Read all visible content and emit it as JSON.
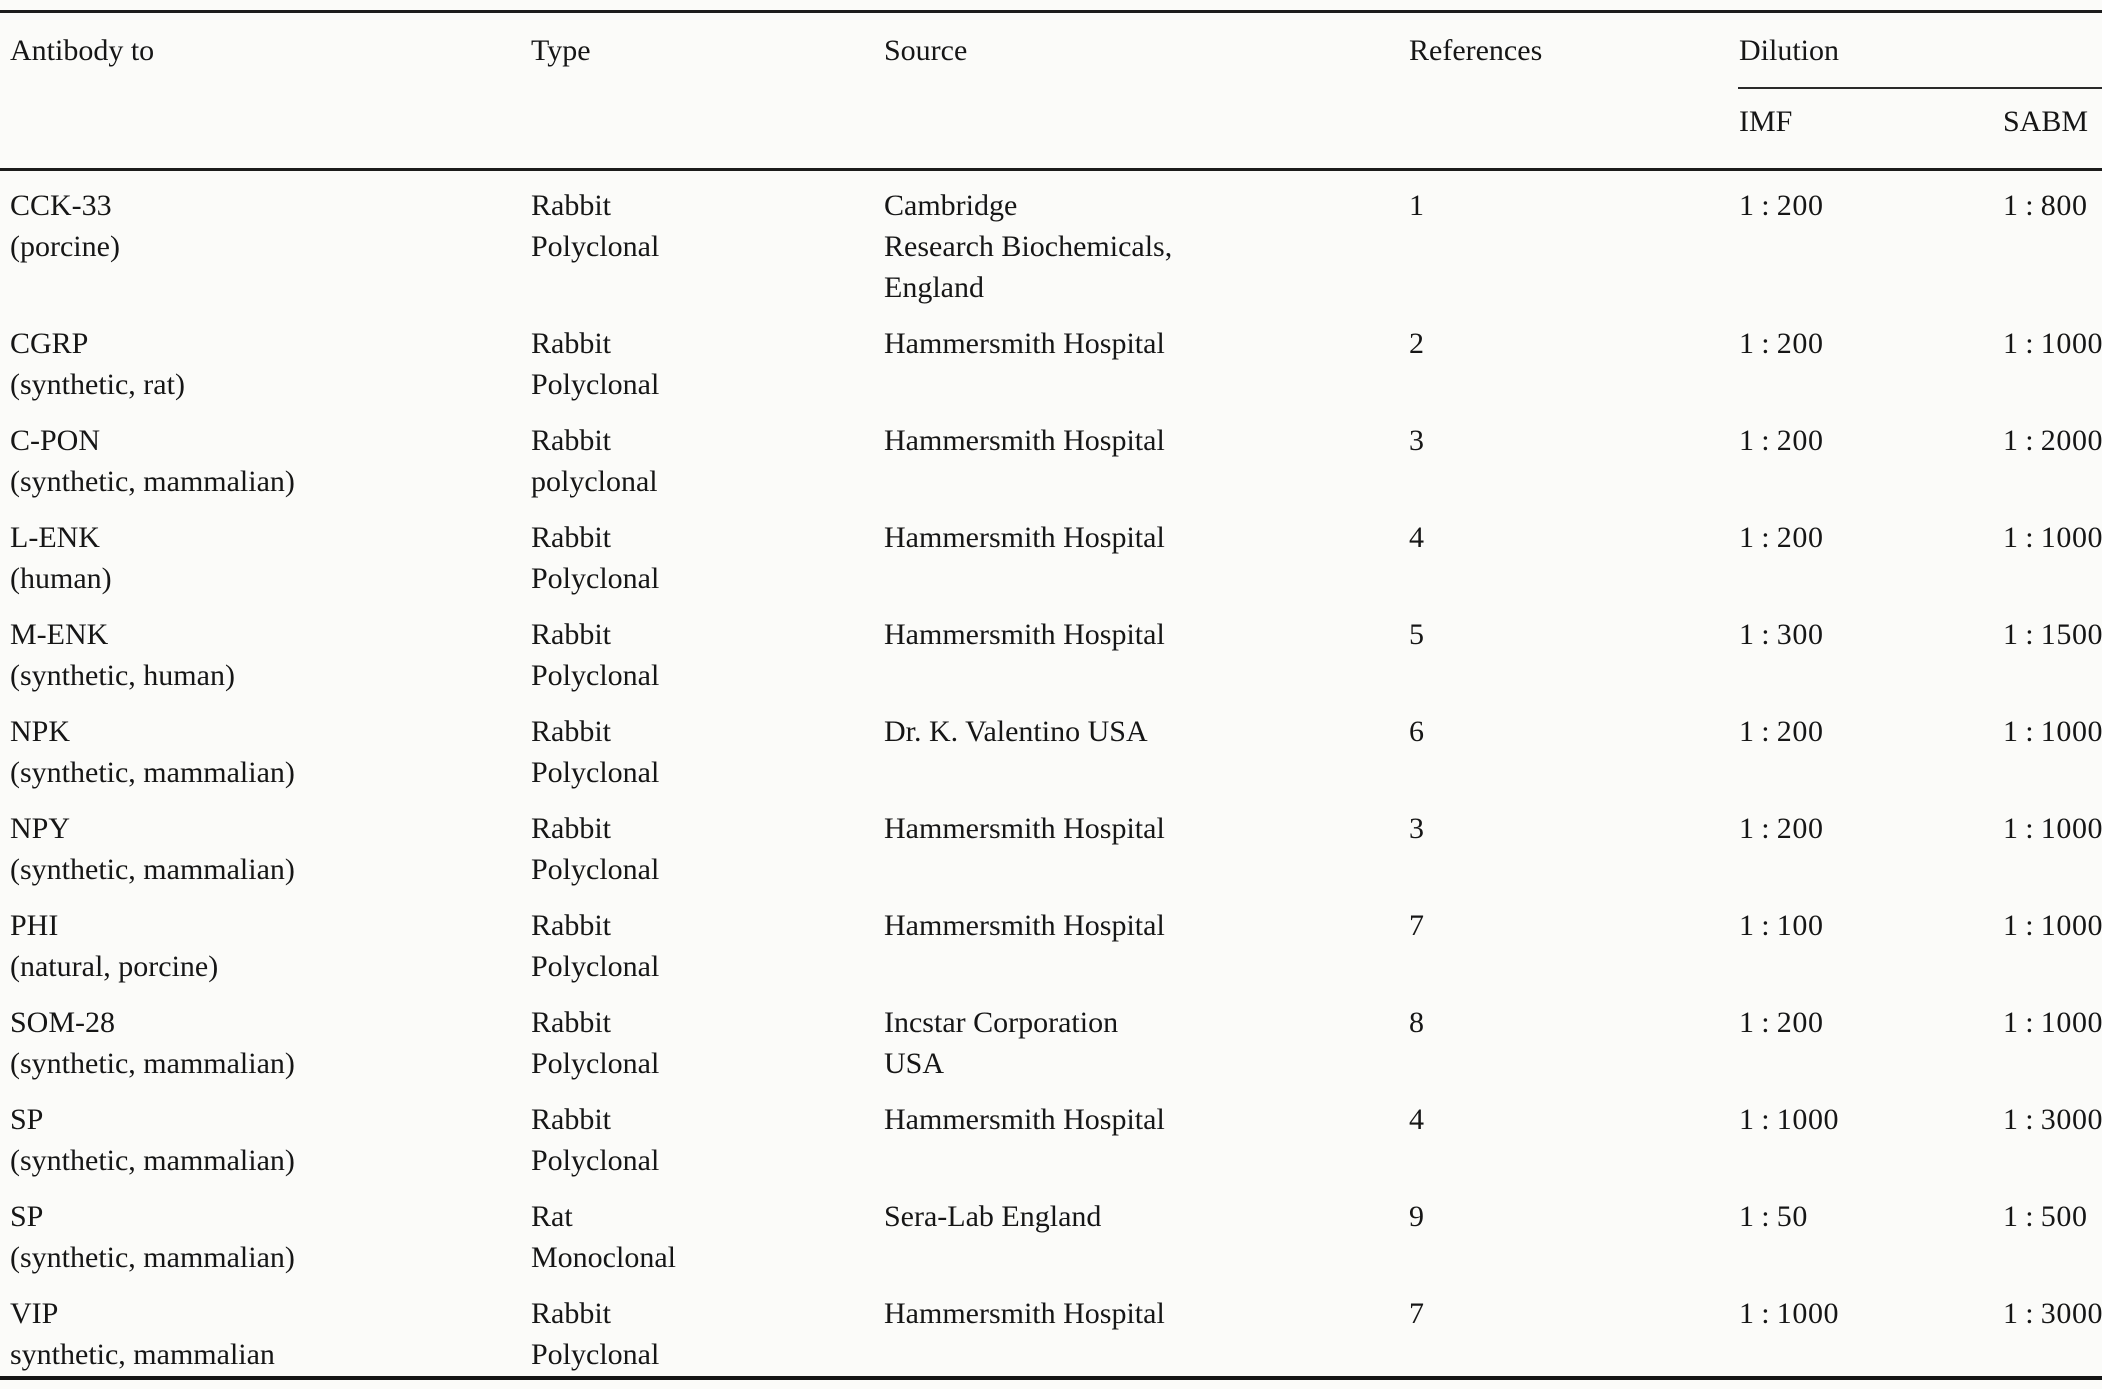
{
  "page": {
    "background_color": "#fbfbf9",
    "text_color": "#161616",
    "rule_color": "#1c1c1c"
  },
  "table": {
    "headers": {
      "antibody": "Antibody to",
      "type": "Type",
      "source": "Source",
      "references": "References",
      "dilution": "Dilution",
      "imf": "IMF",
      "sabm": "SABM"
    },
    "rows": [
      {
        "antibody": [
          "CCK-33",
          "(porcine)"
        ],
        "type": [
          "Rabbit",
          "Polyclonal"
        ],
        "source": [
          "Cambridge",
          "Research Biochemicals,",
          "England"
        ],
        "references": "1",
        "imf": "1:200",
        "sabm": "1:800"
      },
      {
        "antibody": [
          "CGRP",
          "(synthetic, rat)"
        ],
        "type": [
          "Rabbit",
          "Polyclonal"
        ],
        "source": [
          "Hammersmith Hospital"
        ],
        "references": "2",
        "imf": "1:200",
        "sabm": "1:1000"
      },
      {
        "antibody": [
          "C-PON",
          "(synthetic, mammalian)"
        ],
        "type": [
          "Rabbit",
          "polyclonal"
        ],
        "source": [
          "Hammersmith Hospital"
        ],
        "references": "3",
        "imf": "1:200",
        "sabm": "1:2000"
      },
      {
        "antibody": [
          "L-ENK",
          "(human)"
        ],
        "type": [
          "Rabbit",
          "Polyclonal"
        ],
        "source": [
          "Hammersmith Hospital"
        ],
        "references": "4",
        "imf": "1:200",
        "sabm": "1:1000"
      },
      {
        "antibody": [
          "M-ENK",
          "(synthetic, human)"
        ],
        "type": [
          "Rabbit",
          "Polyclonal"
        ],
        "source": [
          "Hammersmith Hospital"
        ],
        "references": "5",
        "imf": "1:300",
        "sabm": "1:1500"
      },
      {
        "antibody": [
          "NPK",
          "(synthetic, mammalian)"
        ],
        "type": [
          "Rabbit",
          "Polyclonal"
        ],
        "source": [
          "Dr. K. Valentino USA"
        ],
        "references": "6",
        "imf": "1:200",
        "sabm": "1:1000"
      },
      {
        "antibody": [
          "NPY",
          "(synthetic, mammalian)"
        ],
        "type": [
          "Rabbit",
          "Polyclonal"
        ],
        "source": [
          "Hammersmith Hospital"
        ],
        "references": "3",
        "imf": "1:200",
        "sabm": "1:1000"
      },
      {
        "antibody": [
          "PHI",
          "(natural, porcine)"
        ],
        "type": [
          "Rabbit",
          "Polyclonal"
        ],
        "source": [
          "Hammersmith Hospital"
        ],
        "references": "7",
        "imf": "1:100",
        "sabm": "1:1000"
      },
      {
        "antibody": [
          "SOM-28",
          "(synthetic, mammalian)"
        ],
        "type": [
          "Rabbit",
          "Polyclonal"
        ],
        "source": [
          "Incstar Corporation",
          "USA"
        ],
        "references": "8",
        "imf": "1:200",
        "sabm": "1:1000"
      },
      {
        "antibody": [
          "SP",
          "(synthetic, mammalian)"
        ],
        "type": [
          "Rabbit",
          "Polyclonal"
        ],
        "source": [
          "Hammersmith Hospital"
        ],
        "references": "4",
        "imf": "1:1000",
        "sabm": "1:3000"
      },
      {
        "antibody": [
          "SP",
          "(synthetic, mammalian)"
        ],
        "type": [
          "Rat",
          "Monoclonal"
        ],
        "source": [
          "Sera-Lab England"
        ],
        "references": "9",
        "imf": "1:50",
        "sabm": "1:500"
      },
      {
        "antibody": [
          "VIP",
          "synthetic, mammalian"
        ],
        "type": [
          "Rabbit",
          "Polyclonal"
        ],
        "source": [
          "Hammersmith Hospital"
        ],
        "references": "7",
        "imf": "1:1000",
        "sabm": "1:3000"
      }
    ]
  }
}
